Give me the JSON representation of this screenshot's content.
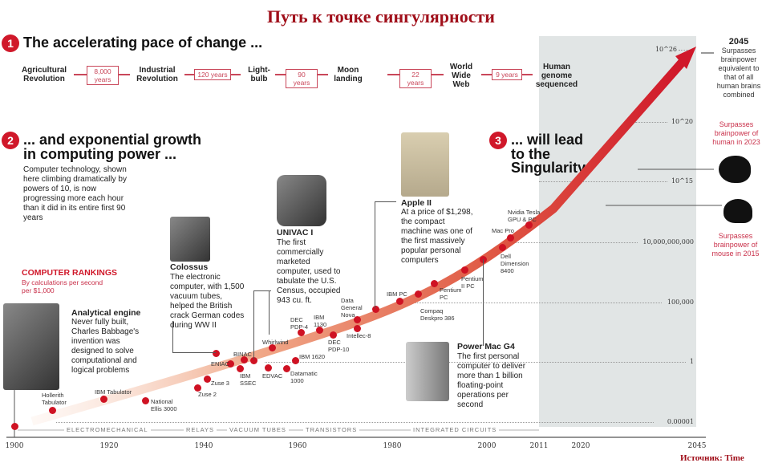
{
  "title": "Путь к точке сингулярности",
  "source": "Источник: Time",
  "section1": {
    "num": "1",
    "heading": "The accelerating pace of change ...",
    "events": [
      "Agricultural Revolution",
      "Industrial Revolution",
      "Light-bulb",
      "Moon landing",
      "World Wide Web",
      "Human genome sequenced"
    ],
    "gaps": [
      "8,000 years",
      "120 years",
      "90 years",
      "22 years",
      "9 years"
    ]
  },
  "section2": {
    "num": "2",
    "heading_line1": "... and exponential growth",
    "heading_line2": "in computing power ...",
    "body": "Computer technology, shown here climbing dramatically by powers of 10, is now progressing more each hour than it did in its entire first 90 years",
    "rankings_title": "COMPUTER RANKINGS",
    "rankings_sub": "By calculations per second per $1,000"
  },
  "section3": {
    "num": "3",
    "heading_line1": "... will lead",
    "heading_line2": "to the",
    "heading_line3": "Singularity"
  },
  "callouts": {
    "analytical": {
      "title": "Analytical engine",
      "body": "Never fully built, Charles Babbage's invention was designed to solve computational and logical problems"
    },
    "colossus": {
      "title": "Colossus",
      "body": "The electronic computer, with 1,500 vacuum tubes, helped the British crack German codes during WW II"
    },
    "univac": {
      "title": "UNIVAC I",
      "body": "The first commercially marketed computer, used to tabulate the U.S. Census, occupied 943 cu. ft."
    },
    "apple": {
      "title": "Apple II",
      "body": "At a price of $1,298, the compact machine was one of the first massively popular personal computers"
    },
    "powermac": {
      "title": "Power Mac G4",
      "body": "The first personal computer to deliver more than 1 billion floating-point operations per second"
    }
  },
  "points": [
    "Hollerith Tabulator",
    "IBM Tabulator",
    "National Ellis 3000",
    "Zuse 2",
    "Zuse 3",
    "ENIAC",
    "BINAC",
    "IBM SSEC",
    "Whirlwind",
    "EDVAC",
    "Datamatic 1000",
    "IBM 1620",
    "DEC PDP-4",
    "IBM 1130",
    "DEC PDP-10",
    "Data General Nova",
    "Intellec-8",
    "IBM PC",
    "Compaq Deskpro 386",
    "Pentium PC",
    "Pentium II PC",
    "Dell Dimension 8400",
    "Mac Pro",
    "Nvidia Tesla GPU & PC"
  ],
  "y_axis": [
    "10^26",
    "10^20",
    "10^15",
    "10,000,000,000",
    "100,000",
    "1",
    "0.00001"
  ],
  "y_sup": {
    "e26": "26",
    "e20": "20",
    "e15": "15"
  },
  "x_axis": [
    "1900",
    "1920",
    "1940",
    "1960",
    "1980",
    "2000",
    "2011",
    "2020",
    "2045"
  ],
  "eras": [
    "ELECTROMECHANICAL",
    "RELAYS",
    "VACUUM TUBES",
    "TRANSISTORS",
    "INTEGRATED CIRCUITS"
  ],
  "milestones": {
    "y2045_year": "2045",
    "y2045_text": "Surpasses brainpower equivalent to that of all human brains combined",
    "human": "Surpasses brainpower of human in 2023",
    "mouse": "Surpasses brainpower of mouse in 2015"
  },
  "colors": {
    "accent": "#d0182a",
    "shade": "#e1e5e5"
  }
}
